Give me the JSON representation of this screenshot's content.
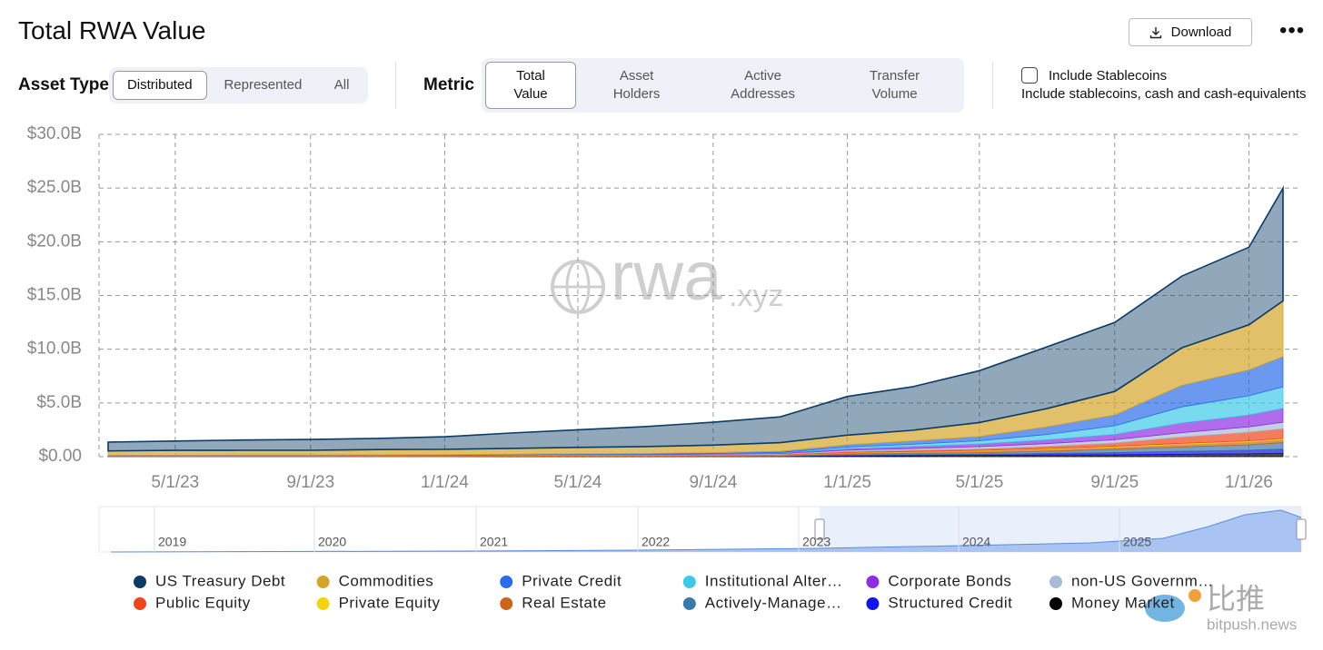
{
  "header": {
    "title": "Total RWA Value",
    "download": "Download"
  },
  "controls": {
    "asset_type": {
      "label": "Asset Type",
      "options": [
        "Distributed",
        "Represented",
        "All"
      ]
    },
    "metric": {
      "label": "Metric",
      "options": [
        "Total Value",
        "Asset Holders",
        "Active Addresses",
        "Transfer Volume"
      ]
    },
    "stablecoins": {
      "label": "Include Stablecoins",
      "description": "Include stablecoins, cash and cash-equivalents"
    }
  },
  "watermark": {
    "main": "rwa",
    "suffix": ".xyz"
  },
  "navigator": {
    "labels": [
      "2019",
      "2020",
      "2021",
      "2022",
      "2023",
      "2024",
      "2025"
    ]
  },
  "source_mark": {
    "name": "比推",
    "site": "bitpush.news"
  },
  "chart_data": {
    "type": "stacked_area",
    "x": [
      "3/1/23",
      "5/1/23",
      "7/1/23",
      "9/1/23",
      "11/1/23",
      "1/1/24",
      "3/1/24",
      "5/1/24",
      "7/1/24",
      "9/1/24",
      "11/1/24",
      "1/1/25",
      "3/1/25",
      "5/1/25",
      "7/1/25",
      "9/1/25",
      "11/1/25",
      "1/1/26",
      "2/1/26"
    ],
    "xticks": [
      "5/1/23",
      "9/1/23",
      "1/1/24",
      "5/1/24",
      "9/1/24",
      "1/1/25",
      "5/1/25",
      "9/1/25",
      "1/1/26"
    ],
    "ylim": [
      0,
      30
    ],
    "yticks": [
      {
        "value": 0,
        "label": "$0.00"
      },
      {
        "value": 5,
        "label": "$5.0B"
      },
      {
        "value": 10,
        "label": "$10.0B"
      },
      {
        "value": 15,
        "label": "$15.0B"
      },
      {
        "value": 20,
        "label": "$20.0B"
      },
      {
        "value": 25,
        "label": "$25.0B"
      },
      {
        "value": 30,
        "label": "$30.0B"
      }
    ],
    "grid": true,
    "series": [
      {
        "name": "US Treasury Debt",
        "color": "#0b3b66",
        "values": [
          0.82,
          0.87,
          0.96,
          1.01,
          1.04,
          1.17,
          1.43,
          1.64,
          1.86,
          2.13,
          2.4,
          3.6,
          4.05,
          4.82,
          5.74,
          6.43,
          6.67,
          7.23,
          10.5
        ]
      },
      {
        "name": "Commodities",
        "color": "#d4a52a",
        "values": [
          0.4,
          0.45,
          0.45,
          0.45,
          0.5,
          0.5,
          0.55,
          0.6,
          0.65,
          0.7,
          0.8,
          0.9,
          1.0,
          1.3,
          1.7,
          2.2,
          3.5,
          4.2,
          5.2
        ]
      },
      {
        "name": "Private Credit",
        "color": "#2b6de8",
        "values": [
          0.02,
          0.02,
          0.03,
          0.03,
          0.03,
          0.04,
          0.05,
          0.06,
          0.07,
          0.08,
          0.1,
          0.2,
          0.3,
          0.4,
          0.7,
          1.0,
          2.0,
          2.4,
          2.8
        ]
      },
      {
        "name": "Institutional Alter…",
        "color": "#3ec9e8",
        "values": [
          0,
          0,
          0,
          0,
          0,
          0,
          0,
          0,
          0,
          0.02,
          0.05,
          0.15,
          0.2,
          0.3,
          0.5,
          0.8,
          1.5,
          1.8,
          2.0
        ]
      },
      {
        "name": "Corporate Bonds",
        "color": "#8e2de2",
        "values": [
          0.01,
          0.01,
          0.01,
          0.01,
          0.01,
          0.02,
          0.02,
          0.03,
          0.04,
          0.05,
          0.06,
          0.15,
          0.2,
          0.25,
          0.35,
          0.5,
          0.9,
          1.1,
          1.3
        ]
      },
      {
        "name": "non-US Governm…",
        "color": "#a9bcd6",
        "values": [
          0.02,
          0.02,
          0.02,
          0.02,
          0.03,
          0.03,
          0.04,
          0.05,
          0.05,
          0.06,
          0.08,
          0.12,
          0.15,
          0.2,
          0.25,
          0.3,
          0.4,
          0.5,
          0.6
        ]
      },
      {
        "name": "Public Equity",
        "color": "#f0441c",
        "values": [
          0.01,
          0.01,
          0.01,
          0.01,
          0.01,
          0.01,
          0.02,
          0.02,
          0.03,
          0.03,
          0.04,
          0.1,
          0.12,
          0.15,
          0.2,
          0.3,
          0.6,
          0.8,
          0.9
        ]
      },
      {
        "name": "Private Equity",
        "color": "#f5d40f",
        "values": [
          0,
          0,
          0,
          0,
          0,
          0,
          0,
          0,
          0,
          0.01,
          0.02,
          0.03,
          0.04,
          0.05,
          0.06,
          0.07,
          0.08,
          0.09,
          0.1
        ]
      },
      {
        "name": "Real Estate",
        "color": "#c9651f",
        "values": [
          0.05,
          0.05,
          0.05,
          0.05,
          0.06,
          0.06,
          0.06,
          0.07,
          0.07,
          0.08,
          0.1,
          0.12,
          0.14,
          0.16,
          0.2,
          0.22,
          0.25,
          0.28,
          0.3
        ]
      },
      {
        "name": "Actively-Manage…",
        "color": "#3b7aa8",
        "values": [
          0,
          0,
          0,
          0,
          0,
          0,
          0,
          0,
          0,
          0,
          0,
          0.1,
          0.12,
          0.15,
          0.2,
          0.3,
          0.4,
          0.5,
          0.6
        ]
      },
      {
        "name": "Structured Credit",
        "color": "#1414e8",
        "values": [
          0,
          0,
          0,
          0,
          0,
          0,
          0,
          0,
          0,
          0,
          0,
          0.05,
          0.08,
          0.1,
          0.15,
          0.2,
          0.28,
          0.34,
          0.4
        ]
      },
      {
        "name": "Money Market",
        "color": "#000000",
        "values": [
          0.02,
          0.02,
          0.02,
          0.02,
          0.02,
          0.02,
          0.03,
          0.03,
          0.03,
          0.04,
          0.05,
          0.08,
          0.1,
          0.12,
          0.15,
          0.18,
          0.22,
          0.26,
          0.3
        ]
      }
    ]
  }
}
